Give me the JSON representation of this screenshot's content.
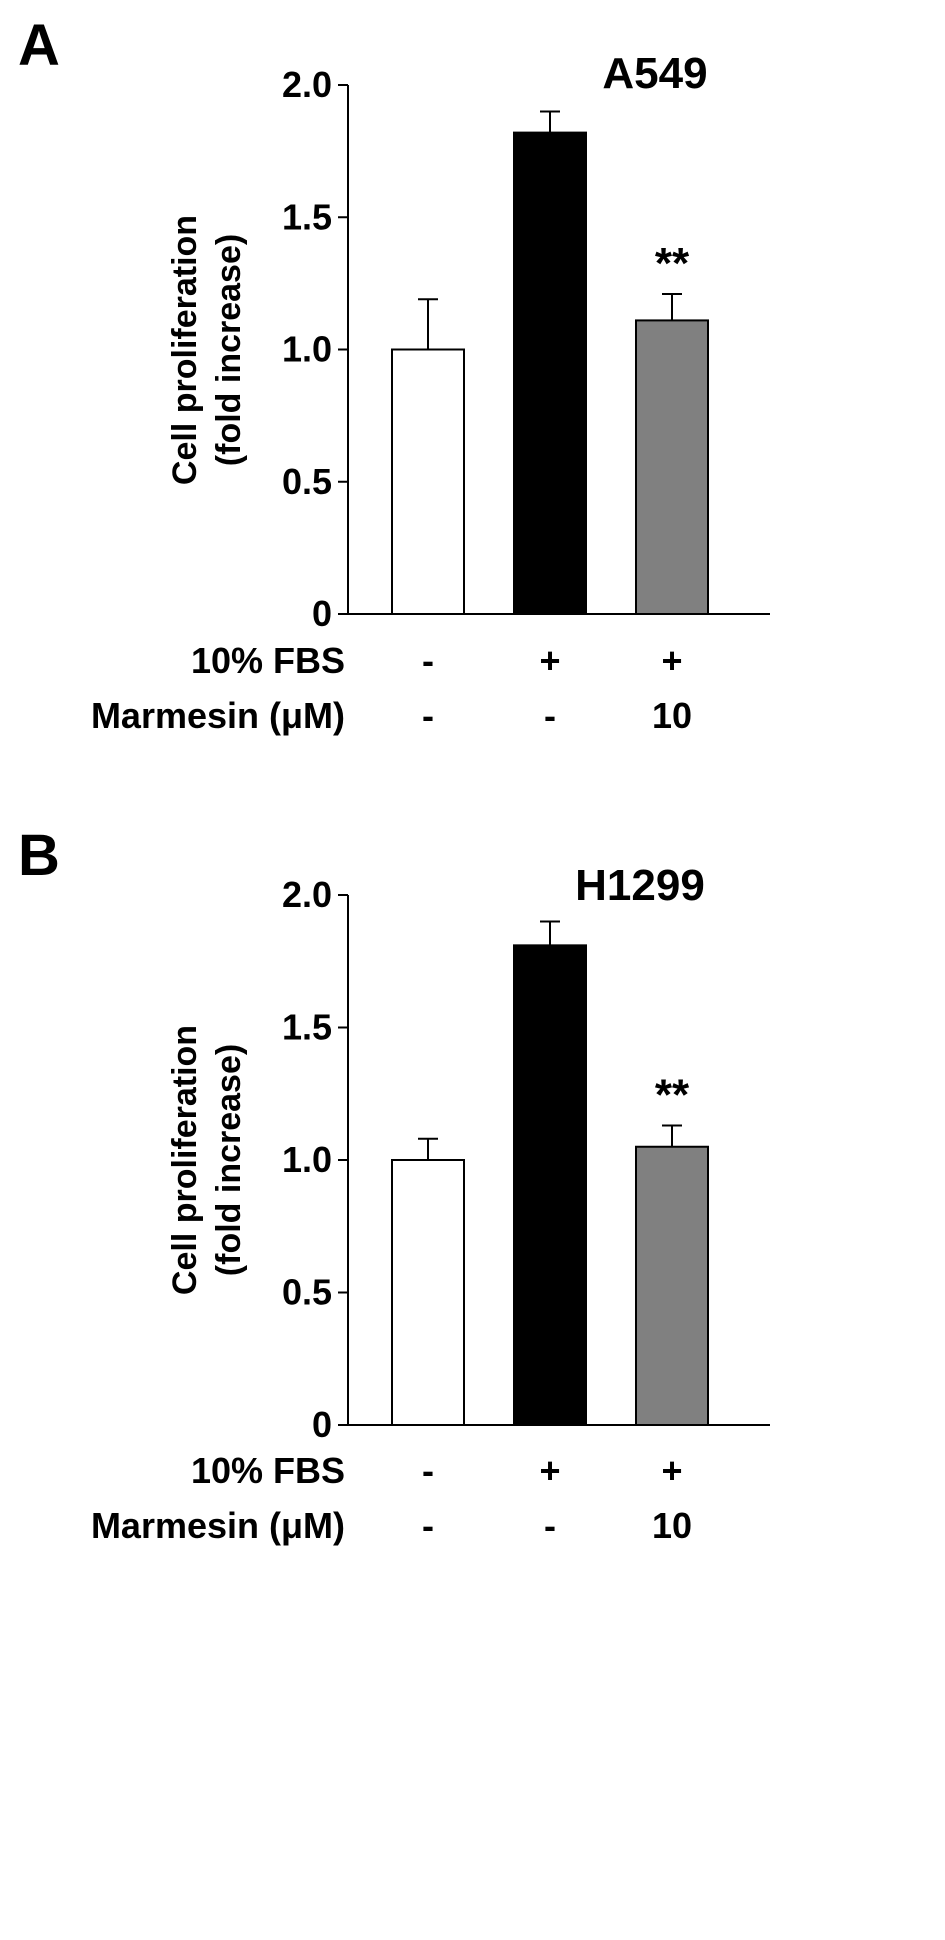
{
  "chart_data": [
    {
      "type": "bar",
      "panel_label": "A",
      "title": "A549",
      "ylabel_lines": [
        "Cell proliferation",
        "(fold increase)"
      ],
      "ylim": [
        0,
        2.0
      ],
      "yticks": [
        0,
        0.5,
        1.0,
        1.5,
        2.0
      ],
      "ytick_labels": [
        "0",
        "0.5",
        "1.0",
        "1.5",
        "2.0"
      ],
      "values": [
        1.0,
        1.82,
        1.11
      ],
      "errors": [
        0.19,
        0.08,
        0.1
      ],
      "bar_colors": [
        "#ffffff",
        "#000000",
        "#808080"
      ],
      "annotations": [
        "",
        "",
        "**"
      ],
      "conditions": [
        {
          "label": "10% FBS",
          "values": [
            "-",
            "+",
            "+"
          ]
        },
        {
          "label": "Marmesin (μM)",
          "values": [
            "-",
            "-",
            "10"
          ]
        }
      ]
    },
    {
      "type": "bar",
      "panel_label": "B",
      "title": "H1299",
      "ylabel_lines": [
        "Cell proliferation",
        "(fold increase)"
      ],
      "ylim": [
        0,
        2.0
      ],
      "yticks": [
        0,
        0.5,
        1.0,
        1.5,
        2.0
      ],
      "ytick_labels": [
        "0",
        "0.5",
        "1.0",
        "1.5",
        "2.0"
      ],
      "values": [
        1.0,
        1.81,
        1.05
      ],
      "errors": [
        0.08,
        0.09,
        0.08
      ],
      "bar_colors": [
        "#ffffff",
        "#000000",
        "#808080"
      ],
      "annotations": [
        "",
        "",
        "**"
      ],
      "conditions": [
        {
          "label": "10% FBS",
          "values": [
            "-",
            "+",
            "+"
          ]
        },
        {
          "label": "Marmesin (μM)",
          "values": [
            "-",
            "-",
            "10"
          ]
        }
      ]
    }
  ]
}
